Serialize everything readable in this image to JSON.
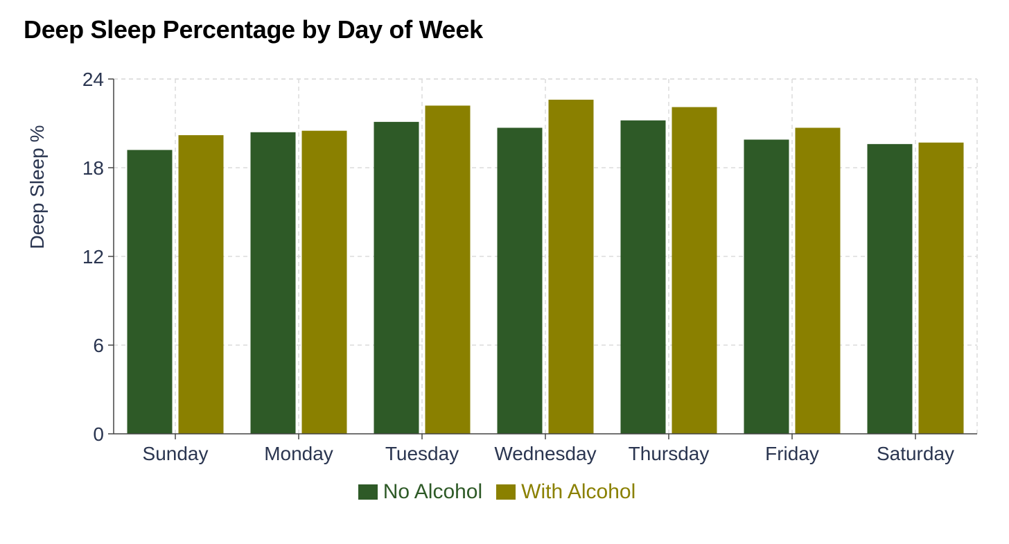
{
  "chart_data": {
    "type": "bar",
    "title": "Deep Sleep Percentage by Day of Week",
    "xlabel": "",
    "ylabel": "Deep Sleep %",
    "ylim": [
      0,
      24
    ],
    "yticks": [
      0,
      6,
      12,
      18,
      24
    ],
    "grid": true,
    "legend_position": "bottom-center",
    "categories": [
      "Sunday",
      "Monday",
      "Tuesday",
      "Wednesday",
      "Thursday",
      "Friday",
      "Saturday"
    ],
    "series": [
      {
        "name": "No Alcohol",
        "color": "#2e5a27",
        "values": [
          19.2,
          20.4,
          21.1,
          20.7,
          21.2,
          19.9,
          19.6
        ]
      },
      {
        "name": "With Alcohol",
        "color": "#8a8000",
        "values": [
          20.2,
          20.5,
          22.2,
          22.6,
          22.1,
          20.7,
          19.7
        ]
      }
    ]
  }
}
